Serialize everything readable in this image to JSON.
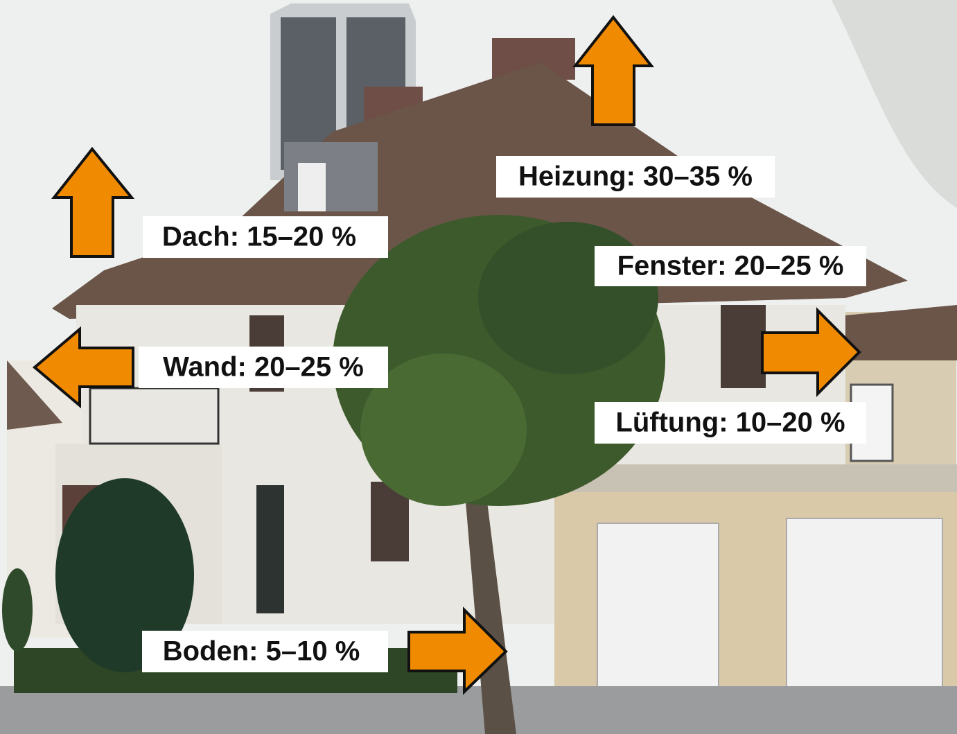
{
  "annotations": [
    {
      "label": "Heizung: 30–35 %"
    },
    {
      "label": "Dach: 15–20 %"
    },
    {
      "label": "Fenster: 20–25 %"
    },
    {
      "label": "Wand: 20–25 %"
    },
    {
      "label": "Lüftung: 10–20 %"
    },
    {
      "label": "Boden: 5–10 %"
    }
  ]
}
